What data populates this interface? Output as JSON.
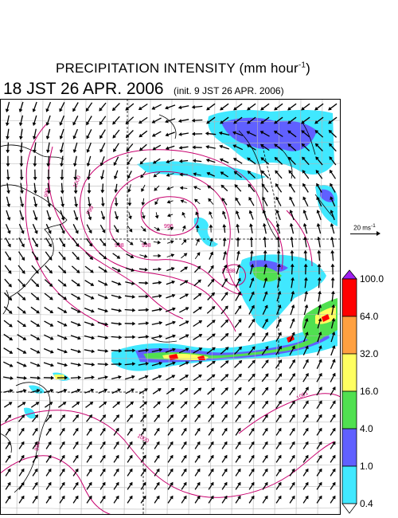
{
  "title": {
    "main": "PRECIPITATION INTENSITY (mm hour",
    "unit_exp": "-1",
    "close": ")"
  },
  "subtitle": {
    "valid_time": "18 JST 26 APR. 2006",
    "init_time": "(init. 9 JST 26 APR. 2006)"
  },
  "wind_scale": {
    "label": "20 ms",
    "exp": "-1"
  },
  "colorbar": {
    "levels": [
      "100.0",
      "64.0",
      "32.0",
      "16.0",
      "4.0",
      "1.0",
      "0.4"
    ],
    "colors": [
      "#ff0000",
      "#ffa040",
      "#ffff60",
      "#50e050",
      "#6060ff",
      "#40e8ff"
    ],
    "top_color": "#a020f0",
    "bottom_color": "#ffffff"
  },
  "colors": {
    "land": "#000000",
    "isobar": "#c8006e",
    "grid": "#b4b4b4",
    "wind": "#000000"
  },
  "isobars": [
    {
      "label": "996"
    },
    {
      "label": "998"
    },
    {
      "label": "998"
    },
    {
      "label": "999"
    },
    {
      "label": "1000"
    },
    {
      "label": "1000"
    },
    {
      "label": "1001"
    },
    {
      "label": "999"
    },
    {
      "label": "998"
    },
    {
      "label": "996"
    }
  ]
}
